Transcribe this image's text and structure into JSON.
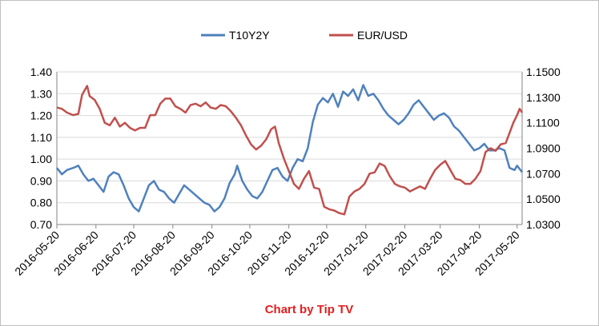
{
  "chart_data": {
    "type": "line",
    "credit": "Chart by Tip TV",
    "x_tick_labels": [
      "2016-05-20",
      "2016-06-20",
      "2016-07-20",
      "2016-08-20",
      "2016-09-20",
      "2016-10-20",
      "2016-11-20",
      "2016-12-20",
      "2017-01-20",
      "2017-02-20",
      "2017-03-20",
      "2017-04-20",
      "2017-05-20"
    ],
    "x_range": [
      "2016-05-20",
      "2017-05-24"
    ],
    "y_left": {
      "min": 0.7,
      "max": 1.4,
      "step": 0.1,
      "ticks": [
        "0.70",
        "0.80",
        "0.90",
        "1.00",
        "1.10",
        "1.20",
        "1.30",
        "1.40"
      ]
    },
    "y_right": {
      "min": 1.03,
      "max": 1.15,
      "step": 0.02,
      "ticks": [
        "1.0300",
        "1.0500",
        "1.0700",
        "1.0900",
        "1.1100",
        "1.1300",
        "1.1500"
      ]
    },
    "grid": "horizontal",
    "legend_position": "top",
    "series": [
      {
        "name": "T10Y2Y",
        "axis": "left",
        "color": "#4f81bd",
        "points": [
          [
            "2016-05-20",
            0.96
          ],
          [
            "2016-05-24",
            0.93
          ],
          [
            "2016-05-28",
            0.95
          ],
          [
            "2016-06-02",
            0.96
          ],
          [
            "2016-06-06",
            0.97
          ],
          [
            "2016-06-10",
            0.93
          ],
          [
            "2016-06-14",
            0.9
          ],
          [
            "2016-06-18",
            0.91
          ],
          [
            "2016-06-22",
            0.88
          ],
          [
            "2016-06-26",
            0.85
          ],
          [
            "2016-06-30",
            0.92
          ],
          [
            "2016-07-04",
            0.94
          ],
          [
            "2016-07-08",
            0.93
          ],
          [
            "2016-07-12",
            0.88
          ],
          [
            "2016-07-16",
            0.82
          ],
          [
            "2016-07-20",
            0.78
          ],
          [
            "2016-07-24",
            0.76
          ],
          [
            "2016-07-28",
            0.82
          ],
          [
            "2016-08-01",
            0.88
          ],
          [
            "2016-08-05",
            0.9
          ],
          [
            "2016-08-09",
            0.86
          ],
          [
            "2016-08-13",
            0.85
          ],
          [
            "2016-08-17",
            0.82
          ],
          [
            "2016-08-21",
            0.8
          ],
          [
            "2016-08-25",
            0.84
          ],
          [
            "2016-08-29",
            0.88
          ],
          [
            "2016-09-02",
            0.86
          ],
          [
            "2016-09-06",
            0.84
          ],
          [
            "2016-09-10",
            0.82
          ],
          [
            "2016-09-14",
            0.8
          ],
          [
            "2016-09-18",
            0.79
          ],
          [
            "2016-09-22",
            0.76
          ],
          [
            "2016-09-26",
            0.78
          ],
          [
            "2016-09-30",
            0.82
          ],
          [
            "2016-10-04",
            0.89
          ],
          [
            "2016-10-08",
            0.93
          ],
          [
            "2016-10-10",
            0.97
          ],
          [
            "2016-10-14",
            0.9
          ],
          [
            "2016-10-18",
            0.86
          ],
          [
            "2016-10-22",
            0.83
          ],
          [
            "2016-10-26",
            0.82
          ],
          [
            "2016-10-30",
            0.85
          ],
          [
            "2016-11-03",
            0.9
          ],
          [
            "2016-11-07",
            0.95
          ],
          [
            "2016-11-11",
            0.96
          ],
          [
            "2016-11-15",
            0.92
          ],
          [
            "2016-11-19",
            0.9
          ],
          [
            "2016-11-23",
            0.96
          ],
          [
            "2016-11-27",
            1.0
          ],
          [
            "2016-12-01",
            0.99
          ],
          [
            "2016-12-05",
            1.05
          ],
          [
            "2016-12-09",
            1.17
          ],
          [
            "2016-12-13",
            1.25
          ],
          [
            "2016-12-17",
            1.28
          ],
          [
            "2016-12-21",
            1.26
          ],
          [
            "2016-12-25",
            1.3
          ],
          [
            "2016-12-29",
            1.24
          ],
          [
            "2017-01-02",
            1.31
          ],
          [
            "2017-01-06",
            1.29
          ],
          [
            "2017-01-10",
            1.32
          ],
          [
            "2017-01-14",
            1.27
          ],
          [
            "2017-01-18",
            1.34
          ],
          [
            "2017-01-22",
            1.29
          ],
          [
            "2017-01-26",
            1.3
          ],
          [
            "2017-01-30",
            1.27
          ],
          [
            "2017-02-03",
            1.23
          ],
          [
            "2017-02-07",
            1.2
          ],
          [
            "2017-02-11",
            1.18
          ],
          [
            "2017-02-15",
            1.16
          ],
          [
            "2017-02-19",
            1.18
          ],
          [
            "2017-02-23",
            1.21
          ],
          [
            "2017-02-27",
            1.25
          ],
          [
            "2017-03-03",
            1.27
          ],
          [
            "2017-03-07",
            1.24
          ],
          [
            "2017-03-11",
            1.21
          ],
          [
            "2017-03-15",
            1.18
          ],
          [
            "2017-03-19",
            1.2
          ],
          [
            "2017-03-23",
            1.21
          ],
          [
            "2017-03-27",
            1.19
          ],
          [
            "2017-03-31",
            1.15
          ],
          [
            "2017-04-04",
            1.13
          ],
          [
            "2017-04-08",
            1.1
          ],
          [
            "2017-04-12",
            1.07
          ],
          [
            "2017-04-16",
            1.04
          ],
          [
            "2017-04-20",
            1.05
          ],
          [
            "2017-04-24",
            1.07
          ],
          [
            "2017-04-28",
            1.04
          ],
          [
            "2017-05-02",
            1.04
          ],
          [
            "2017-05-06",
            1.05
          ],
          [
            "2017-05-10",
            1.04
          ],
          [
            "2017-05-14",
            0.96
          ],
          [
            "2017-05-18",
            0.95
          ],
          [
            "2017-05-20",
            0.97
          ],
          [
            "2017-05-24",
            0.94
          ]
        ]
      },
      {
        "name": "EUR/USD",
        "axis": "right",
        "color": "#c0504d",
        "points": [
          [
            "2016-05-20",
            1.122
          ],
          [
            "2016-05-24",
            1.121
          ],
          [
            "2016-05-28",
            1.118
          ],
          [
            "2016-06-02",
            1.116
          ],
          [
            "2016-06-06",
            1.117
          ],
          [
            "2016-06-09",
            1.132
          ],
          [
            "2016-06-13",
            1.139
          ],
          [
            "2016-06-15",
            1.131
          ],
          [
            "2016-06-19",
            1.128
          ],
          [
            "2016-06-23",
            1.121
          ],
          [
            "2016-06-27",
            1.11
          ],
          [
            "2016-07-01",
            1.108
          ],
          [
            "2016-07-05",
            1.114
          ],
          [
            "2016-07-09",
            1.107
          ],
          [
            "2016-07-13",
            1.11
          ],
          [
            "2016-07-17",
            1.106
          ],
          [
            "2016-07-21",
            1.104
          ],
          [
            "2016-07-25",
            1.106
          ],
          [
            "2016-07-29",
            1.106
          ],
          [
            "2016-08-02",
            1.116
          ],
          [
            "2016-08-06",
            1.116
          ],
          [
            "2016-08-10",
            1.125
          ],
          [
            "2016-08-14",
            1.129
          ],
          [
            "2016-08-18",
            1.129
          ],
          [
            "2016-08-22",
            1.123
          ],
          [
            "2016-08-26",
            1.121
          ],
          [
            "2016-08-30",
            1.118
          ],
          [
            "2016-09-03",
            1.124
          ],
          [
            "2016-09-07",
            1.125
          ],
          [
            "2016-09-11",
            1.123
          ],
          [
            "2016-09-15",
            1.126
          ],
          [
            "2016-09-19",
            1.122
          ],
          [
            "2016-09-23",
            1.121
          ],
          [
            "2016-09-27",
            1.124
          ],
          [
            "2016-10-01",
            1.123
          ],
          [
            "2016-10-05",
            1.119
          ],
          [
            "2016-10-09",
            1.114
          ],
          [
            "2016-10-13",
            1.108
          ],
          [
            "2016-10-17",
            1.1
          ],
          [
            "2016-10-21",
            1.093
          ],
          [
            "2016-10-25",
            1.089
          ],
          [
            "2016-10-29",
            1.092
          ],
          [
            "2016-11-02",
            1.097
          ],
          [
            "2016-11-06",
            1.105
          ],
          [
            "2016-11-09",
            1.107
          ],
          [
            "2016-11-12",
            1.094
          ],
          [
            "2016-11-16",
            1.082
          ],
          [
            "2016-11-20",
            1.072
          ],
          [
            "2016-11-24",
            1.062
          ],
          [
            "2016-11-28",
            1.058
          ],
          [
            "2016-12-02",
            1.066
          ],
          [
            "2016-12-06",
            1.072
          ],
          [
            "2016-12-10",
            1.059
          ],
          [
            "2016-12-14",
            1.058
          ],
          [
            "2016-12-18",
            1.044
          ],
          [
            "2016-12-22",
            1.042
          ],
          [
            "2016-12-26",
            1.041
          ],
          [
            "2016-12-30",
            1.039
          ],
          [
            "2017-01-03",
            1.038
          ],
          [
            "2017-01-07",
            1.052
          ],
          [
            "2017-01-11",
            1.056
          ],
          [
            "2017-01-15",
            1.058
          ],
          [
            "2017-01-19",
            1.062
          ],
          [
            "2017-01-23",
            1.07
          ],
          [
            "2017-01-27",
            1.071
          ],
          [
            "2017-01-31",
            1.078
          ],
          [
            "2017-02-04",
            1.076
          ],
          [
            "2017-02-08",
            1.068
          ],
          [
            "2017-02-12",
            1.062
          ],
          [
            "2017-02-16",
            1.06
          ],
          [
            "2017-02-20",
            1.059
          ],
          [
            "2017-02-24",
            1.056
          ],
          [
            "2017-02-28",
            1.058
          ],
          [
            "2017-03-04",
            1.06
          ],
          [
            "2017-03-08",
            1.058
          ],
          [
            "2017-03-12",
            1.066
          ],
          [
            "2017-03-16",
            1.073
          ],
          [
            "2017-03-20",
            1.077
          ],
          [
            "2017-03-24",
            1.08
          ],
          [
            "2017-03-28",
            1.073
          ],
          [
            "2017-04-01",
            1.066
          ],
          [
            "2017-04-05",
            1.065
          ],
          [
            "2017-04-09",
            1.062
          ],
          [
            "2017-04-13",
            1.062
          ],
          [
            "2017-04-17",
            1.066
          ],
          [
            "2017-04-21",
            1.072
          ],
          [
            "2017-04-25",
            1.087
          ],
          [
            "2017-04-29",
            1.09
          ],
          [
            "2017-05-03",
            1.088
          ],
          [
            "2017-05-07",
            1.093
          ],
          [
            "2017-05-11",
            1.094
          ],
          [
            "2017-05-14",
            1.102
          ],
          [
            "2017-05-17",
            1.11
          ],
          [
            "2017-05-20",
            1.116
          ],
          [
            "2017-05-22",
            1.121
          ],
          [
            "2017-05-24",
            1.118
          ]
        ]
      }
    ]
  },
  "colors": {
    "gridline": "#d9d9d9",
    "axis": "#868686",
    "credit": "#e02020"
  }
}
